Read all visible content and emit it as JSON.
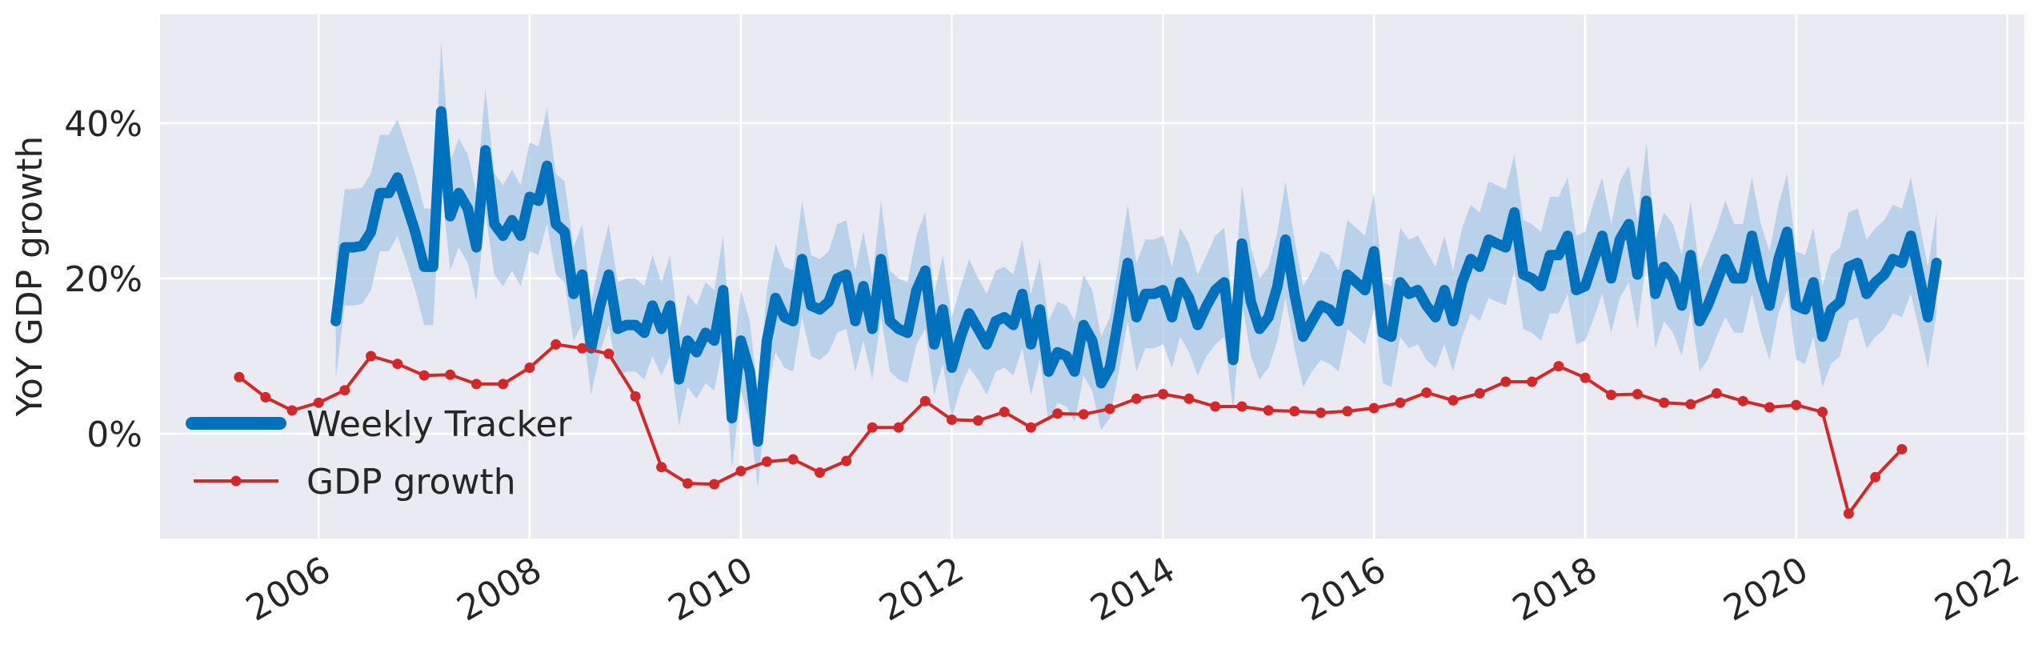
{
  "chart_data": {
    "type": "line",
    "title": "",
    "xlabel": "",
    "ylabel": "YoY GDP growth",
    "x_ticks": [
      "2006",
      "2008",
      "2010",
      "2012",
      "2014",
      "2016",
      "2018",
      "2020",
      "2022"
    ],
    "y_ticks": [
      "0%",
      "20%",
      "40%"
    ],
    "x_range": [
      "2004-07-01",
      "2022-03-01"
    ],
    "y_range": [
      -13.5,
      54
    ],
    "grid": true,
    "legend_position": "lower-left",
    "series": [
      {
        "name": "Weekly Tracker",
        "color": "#0072bd",
        "band_color": "#a9c9e6",
        "dates": [
          "2006-03-01",
          "2006-04-01",
          "2006-05-01",
          "2006-06-01",
          "2006-07-01",
          "2006-08-01",
          "2006-09-01",
          "2006-10-01",
          "2006-11-01",
          "2006-12-01",
          "2007-01-01",
          "2007-02-01",
          "2007-03-01",
          "2007-04-01",
          "2007-05-01",
          "2007-06-01",
          "2007-07-01",
          "2007-08-01",
          "2007-09-01",
          "2007-10-01",
          "2007-11-01",
          "2007-12-01",
          "2008-01-01",
          "2008-02-01",
          "2008-03-01",
          "2008-04-01",
          "2008-05-01",
          "2008-06-01",
          "2008-07-01",
          "2008-08-01",
          "2008-09-01",
          "2008-10-01",
          "2008-11-01",
          "2008-12-01",
          "2009-01-01",
          "2009-02-01",
          "2009-03-01",
          "2009-04-01",
          "2009-05-01",
          "2009-06-01",
          "2009-07-01",
          "2009-08-01",
          "2009-09-01",
          "2009-10-01",
          "2009-11-01",
          "2009-12-01",
          "2010-01-01",
          "2010-02-01",
          "2010-03-01",
          "2010-04-01",
          "2010-05-01",
          "2010-06-01",
          "2010-07-01",
          "2010-08-01",
          "2010-09-01",
          "2010-10-01",
          "2010-11-01",
          "2010-12-01",
          "2011-01-01",
          "2011-02-01",
          "2011-03-01",
          "2011-04-01",
          "2011-05-01",
          "2011-06-01",
          "2011-07-01",
          "2011-08-01",
          "2011-09-01",
          "2011-10-01",
          "2011-11-01",
          "2011-12-01",
          "2012-01-01",
          "2012-02-01",
          "2012-03-01",
          "2012-04-01",
          "2012-05-01",
          "2012-06-01",
          "2012-07-01",
          "2012-08-01",
          "2012-09-01",
          "2012-10-01",
          "2012-11-01",
          "2012-12-01",
          "2013-01-01",
          "2013-02-01",
          "2013-03-01",
          "2013-04-01",
          "2013-05-01",
          "2013-06-01",
          "2013-07-01",
          "2013-08-01",
          "2013-09-01",
          "2013-10-01",
          "2013-11-01",
          "2013-12-01",
          "2014-01-01",
          "2014-02-01",
          "2014-03-01",
          "2014-04-01",
          "2014-05-01",
          "2014-06-01",
          "2014-07-01",
          "2014-08-01",
          "2014-09-01",
          "2014-10-01",
          "2014-11-01",
          "2014-12-01",
          "2015-01-01",
          "2015-02-01",
          "2015-03-01",
          "2015-04-01",
          "2015-05-01",
          "2015-06-01",
          "2015-07-01",
          "2015-08-01",
          "2015-09-01",
          "2015-10-01",
          "2015-11-01",
          "2015-12-01",
          "2016-01-01",
          "2016-02-01",
          "2016-03-01",
          "2016-04-01",
          "2016-05-01",
          "2016-06-01",
          "2016-07-01",
          "2016-08-01",
          "2016-09-01",
          "2016-10-01",
          "2016-11-01",
          "2016-12-01",
          "2017-01-01",
          "2017-02-01",
          "2017-03-01",
          "2017-04-01",
          "2017-05-01",
          "2017-06-01",
          "2017-07-01",
          "2017-08-01",
          "2017-09-01",
          "2017-10-01",
          "2017-11-01",
          "2017-12-01",
          "2018-01-01",
          "2018-02-01",
          "2018-03-01",
          "2018-04-01",
          "2018-05-01",
          "2018-06-01",
          "2018-07-01",
          "2018-08-01",
          "2018-09-01",
          "2018-10-01",
          "2018-11-01",
          "2018-12-01",
          "2019-01-01",
          "2019-02-01",
          "2019-03-01",
          "2019-04-01",
          "2019-05-01",
          "2019-06-01",
          "2019-07-01",
          "2019-08-01",
          "2019-09-01",
          "2019-10-01",
          "2019-11-01",
          "2019-12-01",
          "2020-01-01",
          "2020-02-01",
          "2020-03-01",
          "2020-04-01",
          "2020-05-01",
          "2020-06-01",
          "2020-07-01",
          "2020-08-01",
          "2020-09-01",
          "2020-10-01",
          "2020-11-01",
          "2020-12-01",
          "2021-01-01",
          "2021-02-01",
          "2021-03-01",
          "2021-04-01",
          "2021-05-01"
        ],
        "values": [
          14.5,
          24.0,
          24.0,
          24.2,
          26.0,
          31.0,
          31.0,
          33.0,
          29.5,
          26.0,
          21.5,
          21.5,
          41.5,
          28.0,
          31.0,
          29.0,
          24.0,
          36.5,
          27.0,
          25.5,
          27.5,
          25.5,
          30.5,
          30.0,
          34.5,
          27.0,
          26.0,
          18.0,
          20.5,
          11.0,
          16.5,
          20.5,
          13.5,
          14.0,
          14.0,
          13.0,
          16.5,
          13.5,
          16.5,
          7.0,
          12.0,
          10.5,
          13.0,
          12.0,
          18.5,
          2.0,
          12.0,
          8.0,
          -1.0,
          12.0,
          17.5,
          15.0,
          14.5,
          22.5,
          16.5,
          16.0,
          17.0,
          20.0,
          20.5,
          14.5,
          19.0,
          13.5,
          22.5,
          14.5,
          13.5,
          13.0,
          18.5,
          21.0,
          11.5,
          16.0,
          8.5,
          12.5,
          15.5,
          13.5,
          11.5,
          14.5,
          15.0,
          14.0,
          18.0,
          11.5,
          16.0,
          8.0,
          10.5,
          10.0,
          8.0,
          14.0,
          12.0,
          6.5,
          8.5,
          15.0,
          22.0,
          15.0,
          18.0,
          18.0,
          18.5,
          15.0,
          19.5,
          17.5,
          14.0,
          16.5,
          18.5,
          19.5,
          9.5,
          24.5,
          17.0,
          13.5,
          15.0,
          19.0,
          25.0,
          18.0,
          12.5,
          14.5,
          16.5,
          16.0,
          14.5,
          20.5,
          19.5,
          18.5,
          23.5,
          13.0,
          12.5,
          19.5,
          18.0,
          18.5,
          16.5,
          15.0,
          18.5,
          14.5,
          19.5,
          22.5,
          21.5,
          25.0,
          24.5,
          24.0,
          28.5,
          20.5,
          20.0,
          19.0,
          23.0,
          23.0,
          25.5,
          18.5,
          19.0,
          22.5,
          25.5,
          20.0,
          25.0,
          27.0,
          20.5,
          30.0,
          18.0,
          21.5,
          20.0,
          16.5,
          23.0,
          14.5,
          16.5,
          19.5,
          22.5,
          20.0,
          20.0,
          25.5,
          20.0,
          16.5,
          22.5,
          26.0,
          16.5,
          16.0,
          19.5,
          12.5,
          16.0,
          17.0,
          21.5,
          22.0,
          18.0,
          19.5,
          20.5,
          22.5,
          22.0,
          25.5,
          20.5,
          15.0,
          22.0
        ],
        "band_halfwidth": [
          7.5,
          7.5,
          7.5,
          7.5,
          7.5,
          7.5,
          7.5,
          7.5,
          7.5,
          7.5,
          7.5,
          7.5,
          9.0,
          7.0,
          7.0,
          7.0,
          7.0,
          8.0,
          6.5,
          6.5,
          6.5,
          6.5,
          7.0,
          7.0,
          7.5,
          6.5,
          6.5,
          6.0,
          6.5,
          6.0,
          6.0,
          6.5,
          6.0,
          6.0,
          6.0,
          6.0,
          6.5,
          6.0,
          6.5,
          6.0,
          6.0,
          6.0,
          6.5,
          6.5,
          7.0,
          6.5,
          6.5,
          6.5,
          6.0,
          6.5,
          7.0,
          6.5,
          6.5,
          7.5,
          6.5,
          6.5,
          6.5,
          7.0,
          7.0,
          6.5,
          7.0,
          6.5,
          7.5,
          6.5,
          6.5,
          6.5,
          7.0,
          7.5,
          6.5,
          7.0,
          6.5,
          6.5,
          7.0,
          6.5,
          6.5,
          6.5,
          6.5,
          6.5,
          7.0,
          6.5,
          6.5,
          6.5,
          6.5,
          6.5,
          6.5,
          6.5,
          6.5,
          6.0,
          6.5,
          7.0,
          7.5,
          7.0,
          7.0,
          7.0,
          7.0,
          6.5,
          7.0,
          7.0,
          6.5,
          6.5,
          7.0,
          7.0,
          6.5,
          7.5,
          7.0,
          6.5,
          6.5,
          7.0,
          7.5,
          7.0,
          6.5,
          6.5,
          7.0,
          7.0,
          6.5,
          7.0,
          7.0,
          7.0,
          7.5,
          6.5,
          6.5,
          7.0,
          7.0,
          7.0,
          7.0,
          6.5,
          7.0,
          6.5,
          7.0,
          7.0,
          7.0,
          7.5,
          7.5,
          7.5,
          7.5,
          7.0,
          7.0,
          7.0,
          7.5,
          7.5,
          7.5,
          7.0,
          7.0,
          7.5,
          7.5,
          7.0,
          7.5,
          7.5,
          7.0,
          7.5,
          7.0,
          7.0,
          7.0,
          6.5,
          7.0,
          6.5,
          7.0,
          7.0,
          7.5,
          7.0,
          7.0,
          7.5,
          7.0,
          7.0,
          7.0,
          7.5,
          7.0,
          7.0,
          7.0,
          6.5,
          7.0,
          7.0,
          7.0,
          7.0,
          7.0,
          7.0,
          7.0,
          7.0,
          7.0,
          7.5,
          7.0,
          6.5,
          6.5
        ]
      },
      {
        "name": "GDP growth",
        "color": "#d62728",
        "dates": [
          "2005-04-01",
          "2005-07-01",
          "2005-10-01",
          "2006-01-01",
          "2006-04-01",
          "2006-07-01",
          "2006-10-01",
          "2007-01-01",
          "2007-04-01",
          "2007-07-01",
          "2007-10-01",
          "2008-01-01",
          "2008-04-01",
          "2008-07-01",
          "2008-10-01",
          "2009-01-01",
          "2009-04-01",
          "2009-07-01",
          "2009-10-01",
          "2010-01-01",
          "2010-04-01",
          "2010-07-01",
          "2010-10-01",
          "2011-01-01",
          "2011-04-01",
          "2011-07-01",
          "2011-10-01",
          "2012-01-01",
          "2012-04-01",
          "2012-07-01",
          "2012-10-01",
          "2013-01-01",
          "2013-04-01",
          "2013-07-01",
          "2013-10-01",
          "2014-01-01",
          "2014-04-01",
          "2014-07-01",
          "2014-10-01",
          "2015-01-01",
          "2015-04-01",
          "2015-07-01",
          "2015-10-01",
          "2016-01-01",
          "2016-04-01",
          "2016-07-01",
          "2016-10-01",
          "2017-01-01",
          "2017-04-01",
          "2017-07-01",
          "2017-10-01",
          "2018-01-01",
          "2018-04-01",
          "2018-07-01",
          "2018-10-01",
          "2019-01-01",
          "2019-04-01",
          "2019-07-01",
          "2019-10-01",
          "2020-01-01",
          "2020-04-01",
          "2020-07-01",
          "2020-10-01",
          "2021-01-01"
        ],
        "values": [
          7.3,
          4.7,
          3.0,
          4.0,
          5.6,
          10.0,
          9.0,
          7.5,
          7.6,
          6.4,
          6.4,
          8.5,
          11.5,
          11.0,
          10.3,
          4.8,
          -4.3,
          -6.4,
          -6.5,
          -4.8,
          -3.6,
          -3.3,
          -5.0,
          -3.5,
          0.8,
          0.8,
          4.2,
          1.8,
          1.7,
          2.8,
          0.8,
          2.6,
          2.5,
          3.2,
          4.5,
          5.1,
          4.5,
          3.5,
          3.5,
          3.0,
          2.9,
          2.7,
          2.9,
          3.3,
          4.0,
          5.3,
          4.3,
          5.2,
          6.7,
          6.7,
          8.7,
          7.2,
          5.0,
          5.1,
          4.0,
          3.8,
          5.2,
          4.2,
          3.4,
          3.7,
          2.8,
          -10.3,
          -5.6,
          -2.0
        ]
      }
    ]
  }
}
